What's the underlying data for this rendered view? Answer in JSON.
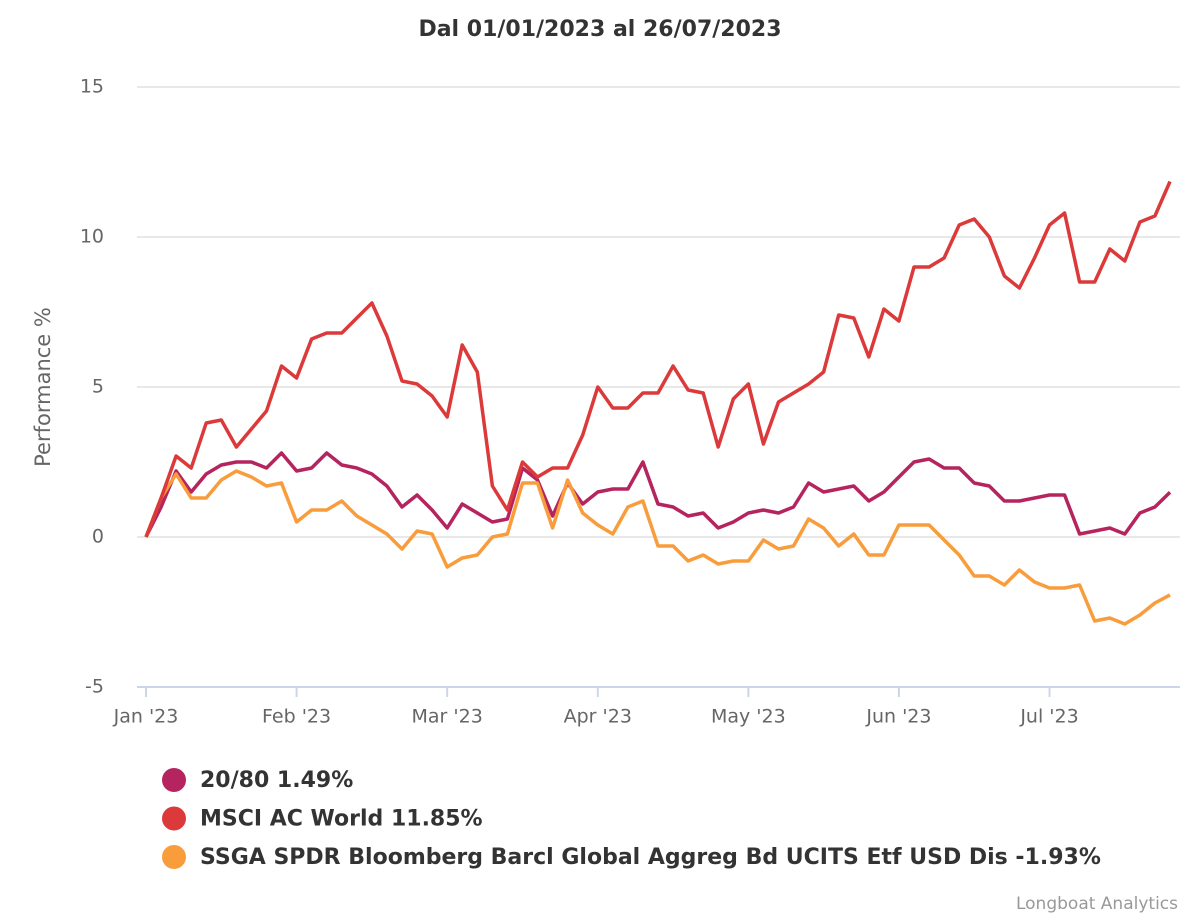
{
  "chart_data": {
    "type": "line",
    "title": "Dal 01/01/2023 al 26/07/2023",
    "y_label": "Performance %",
    "credit": "Longboat Analytics",
    "categories": [
      "Jan '23",
      null,
      null,
      null,
      null,
      null,
      null,
      null,
      null,
      null,
      "Feb '23",
      null,
      null,
      null,
      null,
      null,
      null,
      null,
      null,
      null,
      "Mar '23",
      null,
      null,
      null,
      null,
      null,
      null,
      null,
      null,
      null,
      "Apr '23",
      null,
      null,
      null,
      null,
      null,
      null,
      null,
      null,
      null,
      "May '23",
      null,
      null,
      null,
      null,
      null,
      null,
      null,
      null,
      null,
      "Jun '23",
      null,
      null,
      null,
      null,
      null,
      null,
      null,
      null,
      null,
      "Jul '23",
      null,
      null,
      null,
      null,
      null,
      null,
      null,
      null
    ],
    "series": [
      {
        "name": "20/80 1.49%",
        "color": "#b5245e",
        "values": [
          0,
          1.0,
          2.2,
          1.5,
          2.1,
          2.4,
          2.5,
          2.5,
          2.3,
          2.8,
          2.2,
          2.3,
          2.8,
          2.4,
          2.3,
          2.1,
          1.7,
          1.0,
          1.4,
          0.9,
          0.3,
          1.1,
          0.8,
          0.5,
          0.6,
          2.3,
          1.9,
          0.7,
          1.8,
          1.1,
          1.5,
          1.6,
          1.6,
          2.5,
          1.1,
          1.0,
          0.7,
          0.8,
          0.3,
          0.5,
          0.8,
          0.9,
          0.8,
          1.0,
          1.8,
          1.5,
          1.6,
          1.7,
          1.2,
          1.5,
          2.0,
          2.5,
          2.6,
          2.3,
          2.3,
          1.8,
          1.7,
          1.2,
          1.2,
          1.3,
          1.4,
          1.4,
          0.1,
          0.2,
          0.3,
          0.1,
          0.8,
          1.0,
          1.49
        ]
      },
      {
        "name": "MSCI AC World 11.85%",
        "color": "#dc3a3a",
        "values": [
          0,
          1.3,
          2.7,
          2.3,
          3.8,
          3.9,
          3.0,
          3.6,
          4.2,
          5.7,
          5.3,
          6.6,
          6.8,
          6.8,
          7.3,
          7.8,
          6.7,
          5.2,
          5.1,
          4.7,
          4.0,
          6.4,
          5.5,
          1.7,
          0.9,
          2.5,
          2.0,
          2.3,
          2.3,
          3.4,
          5.0,
          4.3,
          4.3,
          4.8,
          4.8,
          5.7,
          4.9,
          4.8,
          3.0,
          4.6,
          5.1,
          3.1,
          4.5,
          4.8,
          5.1,
          5.5,
          7.4,
          7.3,
          6.0,
          7.6,
          7.2,
          9.0,
          9.0,
          9.3,
          10.4,
          10.6,
          10.0,
          8.7,
          8.3,
          9.3,
          10.4,
          10.8,
          8.5,
          8.5,
          9.6,
          9.2,
          10.5,
          10.7,
          11.85
        ]
      },
      {
        "name": "SSGA SPDR Bloomberg Barcl Global Aggreg Bd UCITS Etf USD Dis -1.93%",
        "color": "#f89c3c",
        "values": [
          0,
          1.3,
          2.1,
          1.3,
          1.3,
          1.9,
          2.2,
          2.0,
          1.7,
          1.8,
          0.5,
          0.9,
          0.9,
          1.2,
          0.7,
          0.4,
          0.1,
          -0.4,
          0.2,
          0.1,
          -1.0,
          -0.7,
          -0.6,
          0.0,
          0.1,
          1.8,
          1.8,
          0.3,
          1.9,
          0.8,
          0.4,
          0.1,
          1.0,
          1.2,
          -0.3,
          -0.3,
          -0.8,
          -0.6,
          -0.9,
          -0.8,
          -0.8,
          -0.1,
          -0.4,
          -0.3,
          0.6,
          0.3,
          -0.3,
          0.1,
          -0.6,
          -0.6,
          0.4,
          0.4,
          0.4,
          -0.1,
          -0.6,
          -1.3,
          -1.3,
          -1.6,
          -1.1,
          -1.5,
          -1.7,
          -1.7,
          -1.6,
          -2.8,
          -2.7,
          -2.9,
          -2.6,
          -2.2,
          -1.93
        ]
      }
    ],
    "ylim": [
      -5,
      15
    ],
    "yticks": [
      -5,
      0,
      5,
      10,
      15
    ],
    "grid": true
  }
}
